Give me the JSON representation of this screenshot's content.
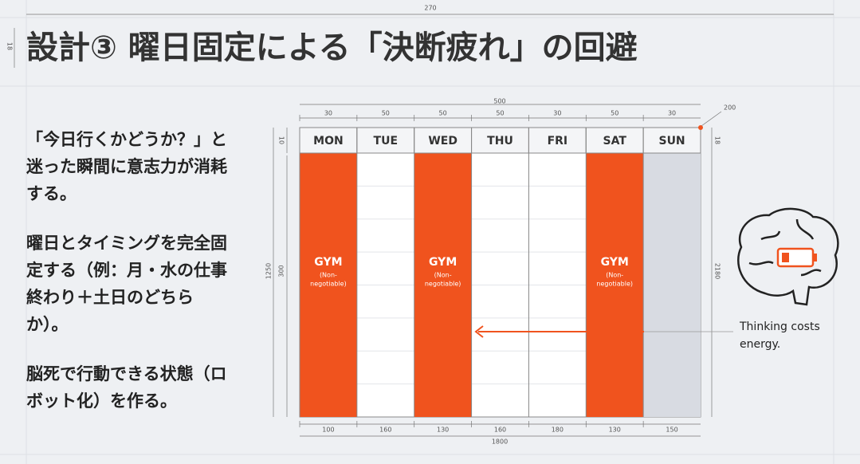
{
  "title": "設計③ 曜日固定による「決断疲れ」の回避",
  "paragraphs": [
    [
      "「今日行くかどうか？」と",
      "迷った瞬間に意志力が消耗",
      "する。"
    ],
    [
      "曜日とタイミングを完全固",
      "定する（例：月・水の仕事",
      "終わり＋土日のどちら",
      "か）。"
    ],
    [
      "脳死で行動できる状態（ロ",
      "ボット化）を作る。"
    ]
  ],
  "schedule": {
    "days": [
      {
        "name": "MON",
        "style": "gym"
      },
      {
        "name": "TUE",
        "style": "plain"
      },
      {
        "name": "WED",
        "style": "gym"
      },
      {
        "name": "THU",
        "style": "plain"
      },
      {
        "name": "FRI",
        "style": "plain"
      },
      {
        "name": "SAT",
        "style": "gym"
      },
      {
        "name": "SUN",
        "style": "rest"
      }
    ],
    "gym_label": "GYM",
    "gym_note": [
      "(Non-",
      "negotiable)"
    ]
  },
  "dimensions": {
    "page_width": "270",
    "title_height": "18",
    "table_width": "500",
    "column_tops": [
      "30",
      "50",
      "50",
      "50",
      "30",
      "50",
      "30"
    ],
    "column_bottoms": [
      "100",
      "160",
      "130",
      "160",
      "180",
      "130",
      "150"
    ],
    "total_bottom": "1800",
    "corner": "200",
    "header_left": "10",
    "header_right": "18",
    "height_left_outer": "1250",
    "height_left_inner": "300",
    "height_right": "2180"
  },
  "annotation": [
    "Thinking costs",
    "energy."
  ]
}
